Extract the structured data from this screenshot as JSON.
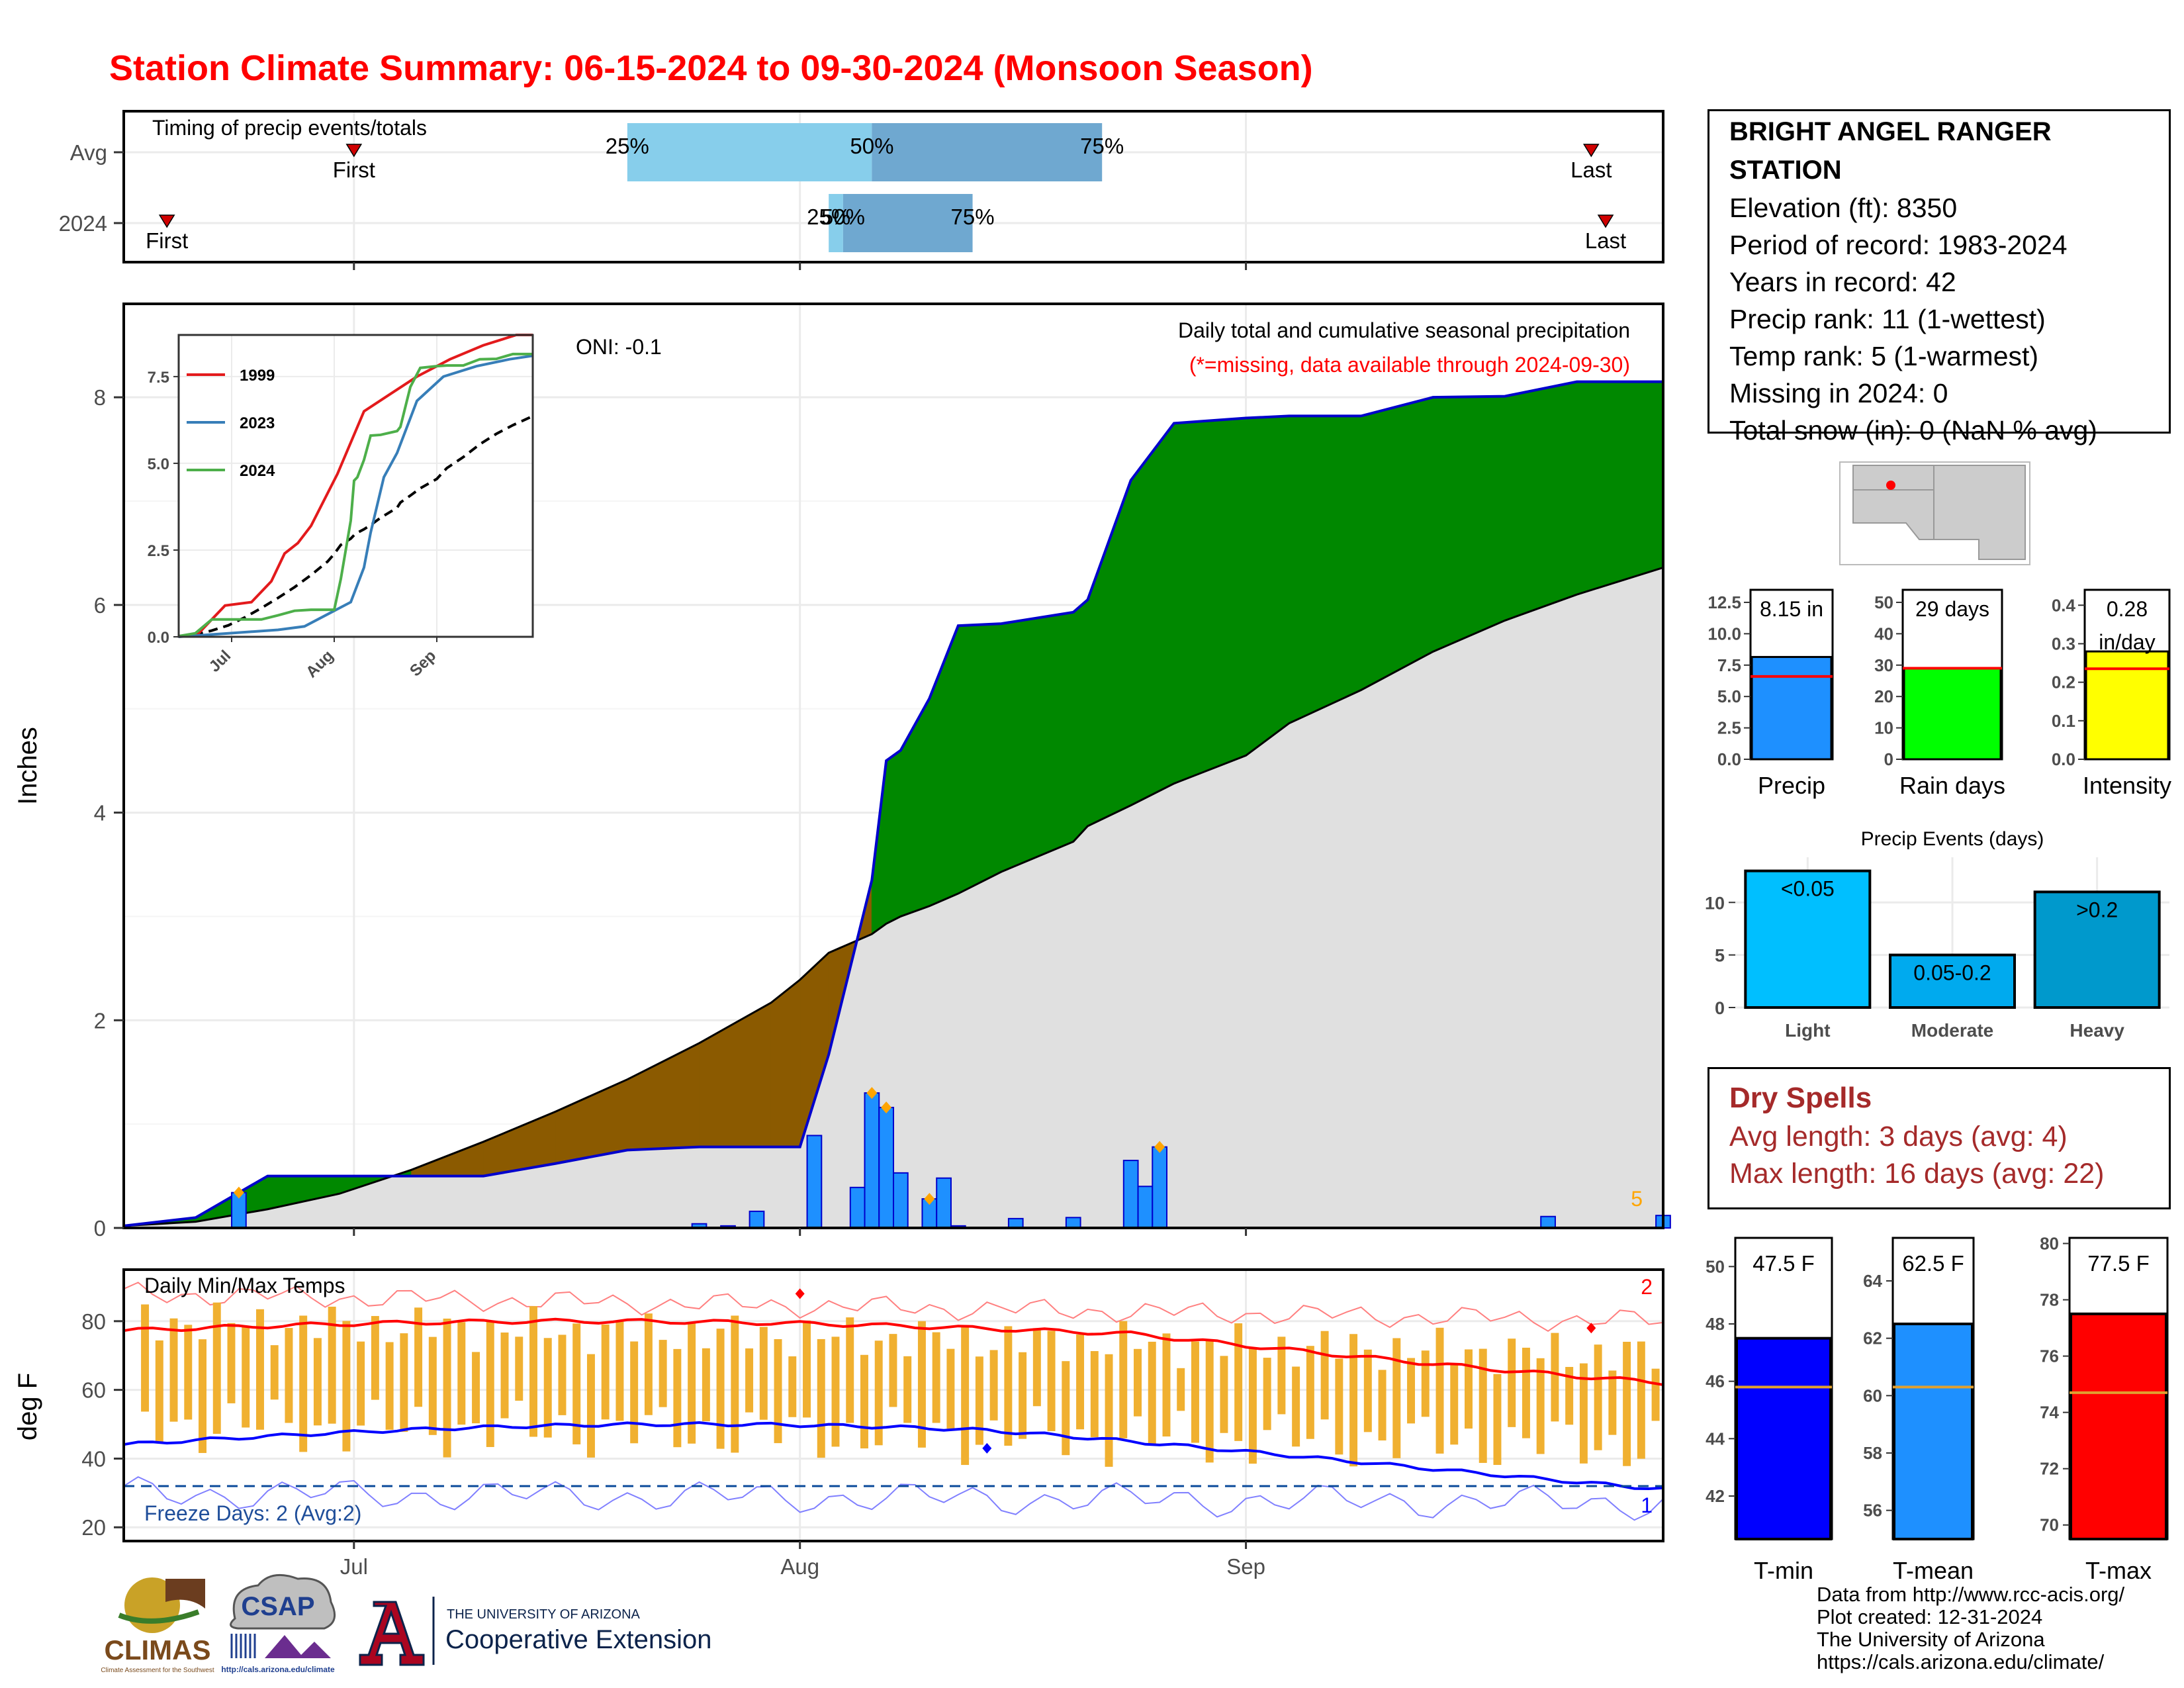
{
  "title": "Station Climate Summary: 06-15-2024 to 09-30-2024 (Monsoon Season)",
  "timing": {
    "title": "Timing of precip events/totals",
    "rows": [
      "Avg",
      "2024"
    ],
    "avg": {
      "first": "First",
      "last": "Last",
      "p25": "25%",
      "p50": "50%",
      "p75": "75%",
      "first_date": "2024-07-01",
      "last_date": "2024-09-25",
      "p25_date": "2024-07-20",
      "p50_date": "2024-08-06",
      "p75_date": "2024-08-22"
    },
    "y2024": {
      "first": "First",
      "last": "Last",
      "p25": "25%",
      "p50": "50%",
      "p75": "75%",
      "first_date": "2024-06-18",
      "last_date": "2024-09-26",
      "p25_date": "2024-08-03",
      "p50_date": "2024-08-04",
      "p75_date": "2024-08-13"
    }
  },
  "station": {
    "name": "BRIGHT ANGEL RANGER STATION",
    "elevation": "Elevation (ft): 8350",
    "period": "Period of record: 1983-2024",
    "years": "Years in record: 42",
    "precip_rank": "Precip rank: 11 (1-wettest)",
    "temp_rank": "Temp rank: 5 (1-warmest)",
    "missing": "Missing in 2024: 0",
    "snow": "Total snow (in): 0 (NaN % avg)"
  },
  "precip_panel": {
    "ylabel": "Inches",
    "oni": "ONI: -0.1",
    "caption": "Daily total and cumulative seasonal precipitation",
    "missing_note": "(*=missing, data available through 2024-09-30)",
    "corner_count": "5",
    "colors": {
      "above": "#008800",
      "below": "#8b5a00",
      "normal": "#e0e0e0",
      "daily": "#1e90ff",
      "outline": "#0000cc",
      "marker": "#ffa500"
    }
  },
  "inset": {
    "legend": [
      "1999",
      "2023",
      "2024"
    ],
    "colors": [
      "#e31a1c",
      "#377eb8",
      "#4daf4a"
    ],
    "yticks": [
      "0.0",
      "2.5",
      "5.0",
      "7.5"
    ],
    "xticks": [
      "Jul",
      "Aug",
      "Sep"
    ]
  },
  "temp_panel": {
    "ylabel": "deg F",
    "title": "Daily Min/Max Temps",
    "freeze": "Freeze Days: 2 (Avg:2)",
    "record_high_count": "2",
    "record_low_count": "1",
    "yticks": [
      "20",
      "40",
      "60",
      "80"
    ],
    "xticks": [
      "Jul",
      "Aug",
      "Sep"
    ]
  },
  "summary_bars": {
    "precip": {
      "label": "Precip",
      "value_text": "8.15 in",
      "value": 8.15,
      "avg": 6.6,
      "ymax": 13.5,
      "ticks": [
        "0.0",
        "2.5",
        "5.0",
        "7.5",
        "10.0",
        "12.5"
      ],
      "color": "#1e90ff"
    },
    "raindays": {
      "label": "Rain days",
      "value_text": "29 days",
      "value": 29,
      "avg": 29,
      "ymax": 54,
      "ticks": [
        "0",
        "10",
        "20",
        "30",
        "40",
        "50"
      ],
      "color": "#00ff00"
    },
    "intensity": {
      "label": "Intensity",
      "value_text": "0.28 in/day",
      "value": 0.28,
      "avg": 0.235,
      "ymax": 0.44,
      "ticks": [
        "0.0",
        "0.1",
        "0.2",
        "0.3",
        "0.4"
      ],
      "color": "#ffff00"
    }
  },
  "events": {
    "title": "Precip Events (days)",
    "categories": [
      "Light",
      "Moderate",
      "Heavy"
    ],
    "labels": [
      "<0.05",
      "0.05-0.2",
      ">0.2"
    ],
    "values": [
      13,
      5,
      11
    ],
    "ticks": [
      "0",
      "5",
      "10"
    ],
    "colors": [
      "#00bfff",
      "#00aaee",
      "#0099cc"
    ]
  },
  "dry_spells": {
    "title": "Dry Spells",
    "avg": "Avg length: 3 days (avg: 4)",
    "max": "Max length: 16 days (avg: 22)"
  },
  "temp_bars": {
    "tmin": {
      "label": "T-min",
      "value_text": "47.5 F",
      "value": 47.5,
      "avg": 45.8,
      "ylo": 40.5,
      "yhi": 51,
      "ticks": [
        "42",
        "44",
        "46",
        "48",
        "50"
      ],
      "color": "#0000ff"
    },
    "tmean": {
      "label": "T-mean",
      "value_text": "62.5 F",
      "value": 62.5,
      "avg": 60.3,
      "ylo": 55,
      "yhi": 65.5,
      "ticks": [
        "56",
        "58",
        "60",
        "62",
        "64"
      ],
      "color": "#1e90ff"
    },
    "tmax": {
      "label": "T-max",
      "value_text": "77.5 F",
      "value": 77.5,
      "avg": 74.7,
      "ylo": 69.5,
      "yhi": 80.2,
      "ticks": [
        "70",
        "72",
        "74",
        "76",
        "78",
        "80"
      ],
      "color": "#ff0000"
    }
  },
  "credits": [
    "Data from http://www.rcc-acis.org/",
    "Plot created: 12-31-2024",
    "The University of Arizona",
    "https://cals.arizona.edu/climate/"
  ],
  "logos": {
    "climas": "CLIMAS",
    "climas_sub": "Climate Assessment for the Southwest",
    "csap": "CSAP",
    "csap_url": "http://cals.arizona.edu/climate",
    "ua_line1": "THE UNIVERSITY OF ARIZONA",
    "ua_line2": "Cooperative Extension"
  },
  "chart_data": {
    "type": "area",
    "title": "Daily total and cumulative seasonal precipitation",
    "ylabel": "Inches",
    "ylim": [
      0,
      8.9
    ],
    "x_dates": [
      "2024-06-15",
      "2024-06-20",
      "2024-06-25",
      "2024-06-30",
      "2024-07-05",
      "2024-07-10",
      "2024-07-15",
      "2024-07-20",
      "2024-07-25",
      "2024-07-30",
      "2024-08-01",
      "2024-08-03",
      "2024-08-06",
      "2024-08-07",
      "2024-08-08",
      "2024-08-10",
      "2024-08-12",
      "2024-08-15",
      "2024-08-20",
      "2024-08-21",
      "2024-08-24",
      "2024-08-27",
      "2024-09-01",
      "2024-09-04",
      "2024-09-09",
      "2024-09-14",
      "2024-09-19",
      "2024-09-24",
      "2024-09-30"
    ],
    "series": [
      {
        "name": "2024",
        "values": [
          0.02,
          0.1,
          0.5,
          0.5,
          0.5,
          0.5,
          0.62,
          0.75,
          0.78,
          0.78,
          0.78,
          1.67,
          3.35,
          4.5,
          4.6,
          5.1,
          5.8,
          5.82,
          5.93,
          6.05,
          7.2,
          7.75,
          7.8,
          7.82,
          7.82,
          8.0,
          8.01,
          8.15,
          8.15
        ]
      },
      {
        "name": "Avg",
        "values": [
          0.02,
          0.06,
          0.18,
          0.33,
          0.56,
          0.83,
          1.12,
          1.43,
          1.78,
          2.17,
          2.39,
          2.65,
          2.83,
          2.93,
          3.0,
          3.1,
          3.22,
          3.43,
          3.72,
          3.87,
          4.07,
          4.28,
          4.55,
          4.86,
          5.18,
          5.55,
          5.85,
          6.1,
          6.36
        ]
      }
    ],
    "daily_precip": {
      "dates": [
        "2024-06-23",
        "2024-07-25",
        "2024-07-27",
        "2024-07-29",
        "2024-08-02",
        "2024-08-05",
        "2024-08-06",
        "2024-08-07",
        "2024-08-08",
        "2024-08-10",
        "2024-08-11",
        "2024-08-12",
        "2024-08-16",
        "2024-08-20",
        "2024-08-24",
        "2024-08-25",
        "2024-08-26",
        "2024-09-22",
        "2024-09-30"
      ],
      "values": [
        0.34,
        0.04,
        0.02,
        0.16,
        0.89,
        0.39,
        1.3,
        1.16,
        0.53,
        0.28,
        0.48,
        0.02,
        0.09,
        0.1,
        0.65,
        0.4,
        0.78,
        0.11,
        0.12
      ]
    }
  }
}
